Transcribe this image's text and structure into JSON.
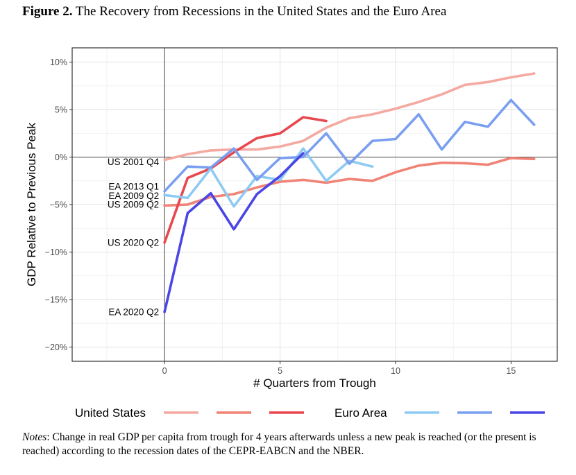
{
  "figure": {
    "label": "Figure 2.",
    "title": "The Recovery from Recessions in the United States and the Euro Area"
  },
  "notes": {
    "label": "Notes",
    "text": ": Change in real GDP per capita from trough for 4 years afterwards unless a new peak is reached (or the present is reached) according to the recession dates of the CEPR-EABCN and the NBER."
  },
  "chart_data": {
    "type": "line",
    "xlabel": "# Quarters from Trough",
    "ylabel": "GDP Relative to Previous Peak",
    "xlim": [
      -4,
      17
    ],
    "ylim": [
      -21.5,
      11.5
    ],
    "x_ticks": [
      0,
      5,
      10,
      15
    ],
    "y_ticks": [
      10,
      5,
      0,
      -5,
      -10,
      -15,
      -20
    ],
    "y_tick_labels": [
      "10%",
      "5%",
      "0%",
      "−5%",
      "−10%",
      "−15%",
      "−20%"
    ],
    "grid": true,
    "reference_lines": {
      "x": 0,
      "y": 0
    },
    "legend": {
      "placement": "bottom",
      "groups": [
        {
          "label": "United States",
          "colors": [
            "#f4a9a1",
            "#f08375",
            "#e8474d"
          ]
        },
        {
          "label": "Euro Area",
          "colors": [
            "#8ecaf2",
            "#7a9ff0",
            "#4a45e5"
          ]
        }
      ]
    },
    "series": [
      {
        "name": "US 2001 Q4",
        "color": "#f4a9a1",
        "x": [
          0,
          1,
          2,
          3,
          4,
          5,
          6,
          7,
          8,
          9,
          10,
          11,
          12,
          13,
          14,
          15,
          16
        ],
        "values": [
          -0.3,
          0.3,
          0.7,
          0.8,
          0.8,
          1.1,
          1.7,
          3.1,
          4.1,
          4.5,
          5.1,
          5.8,
          6.6,
          7.6,
          7.9,
          8.4,
          8.8
        ]
      },
      {
        "name": "US 2009 Q2",
        "color": "#f08375",
        "x": [
          0,
          1,
          2,
          3,
          4,
          5,
          6,
          7,
          8,
          9,
          10,
          11,
          12,
          13,
          14,
          15,
          16
        ],
        "values": [
          -5.1,
          -5.0,
          -4.2,
          -3.9,
          -3.2,
          -2.6,
          -2.4,
          -2.7,
          -2.3,
          -2.5,
          -1.6,
          -0.9,
          -0.6,
          -0.65,
          -0.8,
          -0.1,
          -0.2
        ]
      },
      {
        "name": "US 2020 Q2",
        "color": "#e8474d",
        "x": [
          0,
          1,
          2,
          3,
          4,
          5,
          6,
          7
        ],
        "values": [
          -9.0,
          -2.2,
          -1.2,
          0.5,
          2.0,
          2.5,
          4.2,
          3.8
        ]
      },
      {
        "name": "EA 2009 Q2",
        "color": "#8ecaf2",
        "x": [
          0,
          1,
          2,
          3,
          4,
          5,
          6,
          7,
          8,
          9
        ],
        "values": [
          -4.0,
          -4.3,
          -1.2,
          -5.2,
          -2.0,
          -2.4,
          0.9,
          -2.5,
          -0.4,
          -1.0
        ]
      },
      {
        "name": "EA 2013 Q1",
        "color": "#7a9ff0",
        "x": [
          0,
          1,
          2,
          3,
          4,
          5,
          6,
          7,
          8,
          9,
          10,
          11,
          12,
          13,
          14,
          15,
          16
        ],
        "values": [
          -3.6,
          -1.0,
          -1.1,
          0.9,
          -2.4,
          -0.1,
          0.0,
          2.5,
          -0.7,
          1.7,
          1.9,
          4.5,
          0.8,
          3.7,
          3.2,
          6.0,
          3.4
        ]
      },
      {
        "name": "EA 2020 Q2",
        "color": "#4a45e5",
        "x": [
          0,
          1,
          2,
          3,
          4,
          5,
          6
        ],
        "values": [
          -16.3,
          -5.9,
          -3.8,
          -7.6,
          -3.9,
          -2.0,
          0.4
        ]
      }
    ],
    "annotations": [
      {
        "text": "US 2001 Q4",
        "at": [
          0,
          -0.5
        ]
      },
      {
        "text": "EA 2013 Q1",
        "at": [
          0,
          -3.1
        ]
      },
      {
        "text": "EA 2009 Q2",
        "at": [
          0,
          -4.1
        ]
      },
      {
        "text": "US 2009 Q2",
        "at": [
          0,
          -5.0
        ]
      },
      {
        "text": "US 2020 Q2",
        "at": [
          0,
          -9.0
        ]
      },
      {
        "text": "EA 2020 Q2",
        "at": [
          0,
          -16.3
        ]
      }
    ]
  }
}
